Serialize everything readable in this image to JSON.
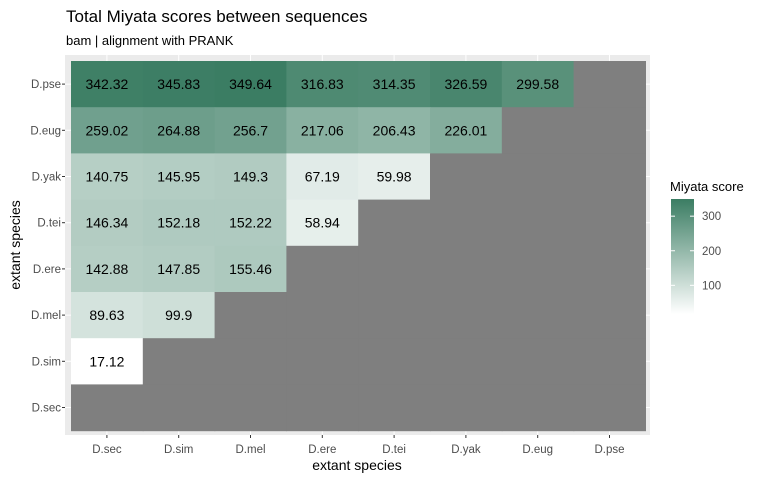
{
  "chart_data": {
    "type": "heatmap",
    "title": "Total Miyata scores between sequences",
    "subtitle": "bam | alignment with PRANK",
    "xlabel": "extant species",
    "ylabel": "extant species",
    "x_categories": [
      "D.sec",
      "D.sim",
      "D.mel",
      "D.ere",
      "D.tei",
      "D.yak",
      "D.eug",
      "D.pse"
    ],
    "y_categories": [
      "D.pse",
      "D.eug",
      "D.yak",
      "D.tei",
      "D.ere",
      "D.mel",
      "D.sim",
      "D.sec"
    ],
    "rows": [
      {
        "y": "D.pse",
        "values": [
          342.32,
          345.83,
          349.64,
          316.83,
          314.35,
          326.59,
          299.58,
          null
        ]
      },
      {
        "y": "D.eug",
        "values": [
          259.02,
          264.88,
          256.7,
          217.06,
          206.43,
          226.01,
          null,
          null
        ]
      },
      {
        "y": "D.yak",
        "values": [
          140.75,
          145.95,
          149.3,
          67.19,
          59.98,
          null,
          null,
          null
        ]
      },
      {
        "y": "D.tei",
        "values": [
          146.34,
          152.18,
          152.22,
          58.94,
          null,
          null,
          null,
          null
        ]
      },
      {
        "y": "D.ere",
        "values": [
          142.88,
          147.85,
          155.46,
          null,
          null,
          null,
          null,
          null
        ]
      },
      {
        "y": "D.mel",
        "values": [
          89.63,
          99.9,
          null,
          null,
          null,
          null,
          null,
          null
        ]
      },
      {
        "y": "D.sim",
        "values": [
          17.12,
          null,
          null,
          null,
          null,
          null,
          null,
          null
        ]
      },
      {
        "y": "D.sec",
        "values": [
          null,
          null,
          null,
          null,
          null,
          null,
          null,
          null
        ]
      }
    ],
    "legend": {
      "title": "Miyata score",
      "ticks": [
        100,
        200,
        300
      ],
      "range": [
        17.12,
        349.64
      ],
      "low_color": "#ffffff",
      "high_color": "#3b7d63",
      "na_color": "#7f7f7f"
    },
    "panel_background": "#ebebeb",
    "grid": true
  }
}
